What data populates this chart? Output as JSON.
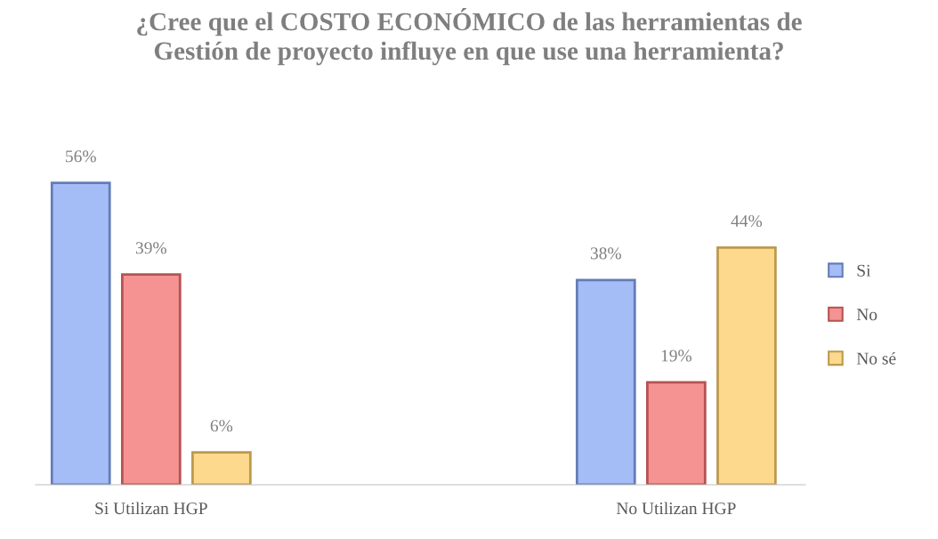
{
  "chart_data": {
    "type": "bar",
    "title": "¿Cree que el COSTO ECONÓMICO de las herramientas de Gestión de proyecto influye en que use una herramienta?",
    "categories": [
      "Si Utilizan HGP",
      "No Utilizan HGP"
    ],
    "series": [
      {
        "name": "Si",
        "color": "#a4bdf6",
        "values": [
          56,
          38
        ],
        "value_labels": [
          "56%",
          "38%"
        ]
      },
      {
        "name": "No",
        "color": "#f59292",
        "values": [
          39,
          19
        ],
        "value_labels": [
          "39%",
          "19%"
        ]
      },
      {
        "name": "No sé",
        "color": "#fdd98e",
        "values": [
          6,
          44
        ],
        "value_labels": [
          "6%",
          "44%"
        ]
      }
    ],
    "legend": "right",
    "grid": false
  }
}
